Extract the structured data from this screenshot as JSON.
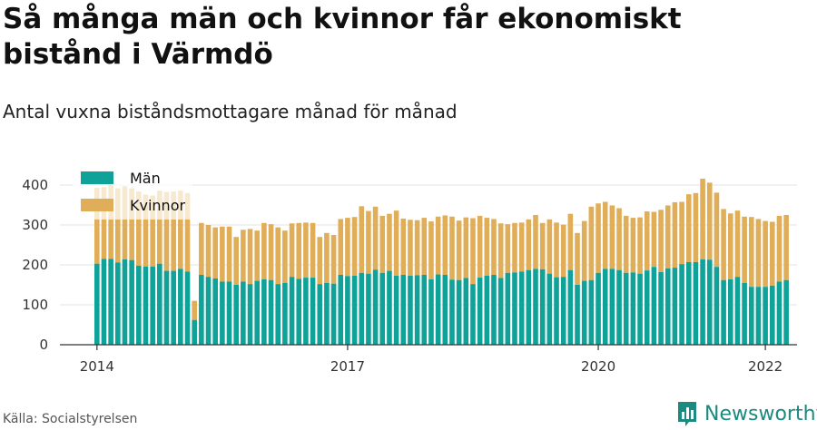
{
  "title": "Så många män och kvinnor får ekonomiskt bistånd i Värmdö",
  "subtitle": "Antal vuxna biståndsmottagare månad för månad",
  "source": "Källa: Socialstyrelsen",
  "brand": {
    "name": "Newsworthy",
    "icon": "bar-chart-logo-icon"
  },
  "colors": {
    "men": "#0fa298",
    "women": "#e0ae58",
    "grid": "#e3e3e3",
    "axis": "#333333"
  },
  "chart_data": {
    "type": "bar",
    "stacked": true,
    "x_start": "2014-01",
    "x_ticks": [
      "2014",
      "2017",
      "2020",
      "2022"
    ],
    "ylim": [
      0,
      420
    ],
    "y_ticks": [
      0,
      100,
      200,
      300,
      400
    ],
    "grid": true,
    "legend_position": "top-left",
    "series": [
      {
        "name": "Män",
        "values": [
          203,
          215,
          215,
          206,
          214,
          212,
          198,
          196,
          196,
          203,
          185,
          185,
          190,
          183,
          62,
          175,
          170,
          166,
          158,
          158,
          150,
          158,
          152,
          160,
          164,
          162,
          152,
          155,
          170,
          165,
          168,
          168,
          152,
          155,
          153,
          175,
          172,
          173,
          180,
          178,
          188,
          180,
          185,
          173,
          175,
          173,
          174,
          175,
          164,
          176,
          175,
          163,
          162,
          167,
          152,
          168,
          173,
          175,
          167,
          180,
          181,
          183,
          187,
          190,
          189,
          178,
          169,
          170,
          187,
          150,
          160,
          162,
          180,
          190,
          190,
          187,
          180,
          181,
          178,
          186,
          195,
          182,
          191,
          193,
          202,
          207,
          207,
          214,
          213,
          195,
          162,
          164,
          170,
          155,
          145,
          145,
          145,
          148,
          158,
          162
        ]
      },
      {
        "name": "Kvinnor",
        "values": [
          190,
          180,
          186,
          186,
          183,
          180,
          186,
          180,
          178,
          183,
          198,
          199,
          196,
          197,
          48,
          130,
          130,
          128,
          138,
          138,
          120,
          130,
          138,
          126,
          141,
          140,
          142,
          131,
          134,
          140,
          138,
          137,
          118,
          125,
          122,
          140,
          146,
          147,
          167,
          157,
          158,
          143,
          143,
          163,
          141,
          140,
          138,
          143,
          145,
          145,
          149,
          158,
          149,
          152,
          165,
          155,
          145,
          140,
          137,
          122,
          124,
          123,
          127,
          135,
          116,
          136,
          137,
          131,
          141,
          130,
          150,
          184,
          174,
          168,
          159,
          155,
          143,
          137,
          141,
          148,
          138,
          156,
          158,
          164,
          156,
          170,
          173,
          202,
          193,
          186,
          178,
          165,
          166,
          166,
          175,
          170,
          165,
          160,
          165,
          163
        ]
      }
    ]
  }
}
